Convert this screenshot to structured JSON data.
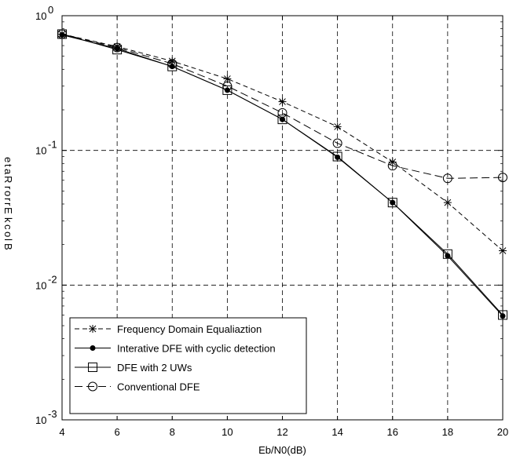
{
  "chart_data": {
    "type": "line",
    "xlabel": "Eb/N0(dB)",
    "ylabel": "Block Error Rate",
    "xlim": [
      4,
      20
    ],
    "ylim": [
      0.001,
      1
    ],
    "yscale": "log",
    "grid": true,
    "legend_position": "bottom-left",
    "x_ticks": [
      "4",
      "6",
      "8",
      "10",
      "12",
      "14",
      "16",
      "18",
      "20"
    ],
    "y_ticks": [
      {
        "base": "10",
        "exp": "0",
        "value": 1
      },
      {
        "base": "10",
        "exp": "-1",
        "value": 0.1
      },
      {
        "base": "10",
        "exp": "-2",
        "value": 0.01
      },
      {
        "base": "10",
        "exp": "-3",
        "value": 0.001
      }
    ],
    "x": [
      4,
      6,
      8,
      10,
      12,
      14,
      16,
      18,
      20
    ],
    "series": [
      {
        "name": "Frequency Domain Equaliaztion",
        "marker": "star",
        "line": "dashed",
        "values": [
          0.73,
          0.59,
          0.46,
          0.34,
          0.23,
          0.15,
          0.082,
          0.041,
          0.018
        ]
      },
      {
        "name": "Interative DFE with cyclic detection",
        "marker": "dot",
        "line": "solid",
        "values": [
          0.72,
          0.57,
          0.42,
          0.28,
          0.17,
          0.089,
          0.041,
          0.0165,
          0.0059
        ]
      },
      {
        "name": "DFE with 2 UWs",
        "marker": "square",
        "line": "solid",
        "values": [
          0.73,
          0.56,
          0.42,
          0.28,
          0.17,
          0.09,
          0.041,
          0.017,
          0.006
        ]
      },
      {
        "name": "Conventional DFE",
        "marker": "circle",
        "line": "longdash",
        "values": [
          0.73,
          0.58,
          0.44,
          0.3,
          0.19,
          0.113,
          0.077,
          0.062,
          0.063
        ]
      }
    ]
  }
}
